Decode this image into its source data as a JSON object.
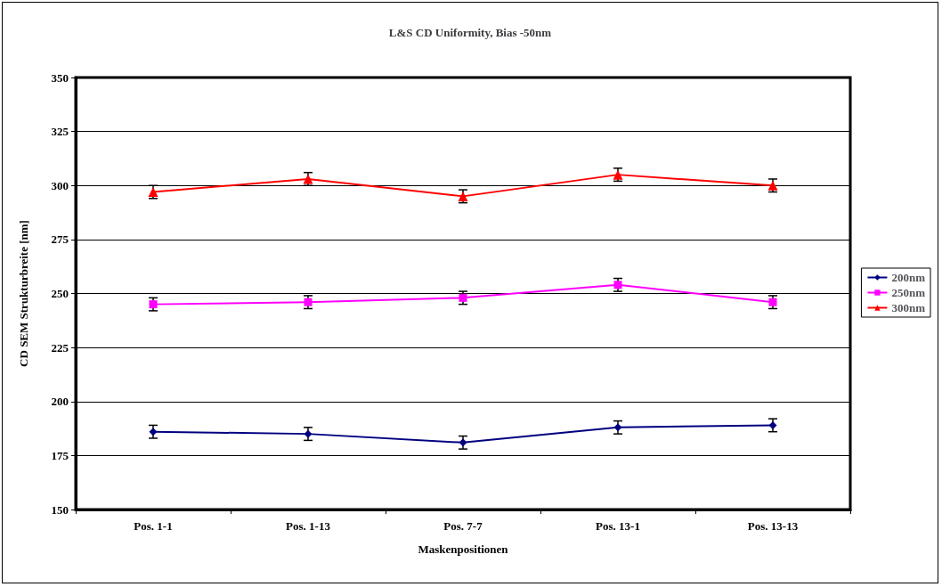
{
  "chart_data": {
    "type": "line",
    "title": "L&S CD Uniformity, Bias -50nm",
    "xlabel": "Maskenpositionen",
    "ylabel": "CD SEM Strukturbreite [nm]",
    "categories": [
      "Pos. 1-1",
      "Pos. 1-13",
      "Pos. 7-7",
      "Pos. 13-1",
      "Pos. 13-13"
    ],
    "series": [
      {
        "name": "200nm",
        "color": "#000080",
        "marker": "diamond",
        "values": [
          186,
          185,
          181,
          188,
          189
        ],
        "errors": [
          3,
          3,
          3,
          3,
          3
        ]
      },
      {
        "name": "250nm",
        "color": "#ff00ff",
        "marker": "square",
        "values": [
          245,
          246,
          248,
          254,
          246
        ],
        "errors": [
          3,
          3,
          3,
          3,
          3
        ]
      },
      {
        "name": "300nm",
        "color": "#ff0000",
        "marker": "triangle",
        "values": [
          297,
          303,
          295,
          305,
          300
        ],
        "errors": [
          3,
          3,
          3,
          3,
          3
        ]
      }
    ],
    "ylim": [
      150,
      350
    ],
    "yticks": [
      150,
      175,
      200,
      225,
      250,
      275,
      300,
      325,
      350
    ],
    "grid": "y",
    "legend": "right",
    "line_style": "solid"
  }
}
